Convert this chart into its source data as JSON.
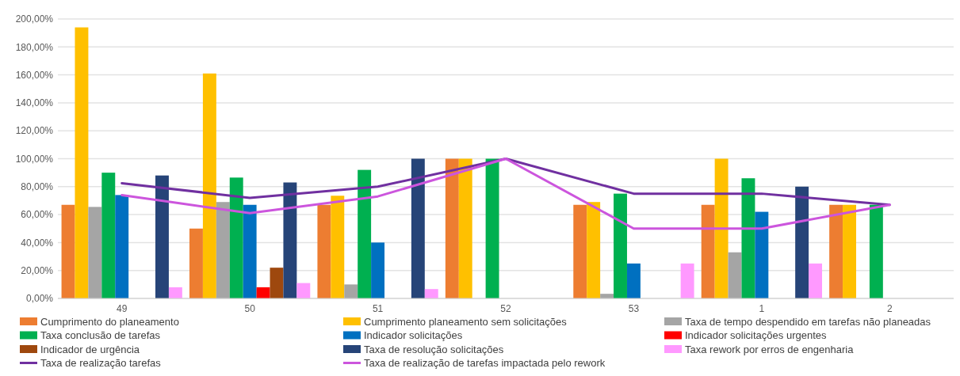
{
  "chart_data": {
    "type": "bar",
    "categories": [
      "49",
      "50",
      "51",
      "52",
      "53",
      "1",
      "2"
    ],
    "series": [
      {
        "name": "Cumprimento do planeamento",
        "color": "#ed7d31",
        "values": [
          67,
          50,
          67,
          100,
          67,
          67,
          67
        ]
      },
      {
        "name": "Cumprimento planeamento sem solicitações",
        "color": "#ffc000",
        "values": [
          194,
          161,
          73.5,
          100,
          69,
          100,
          67
        ]
      },
      {
        "name": "Taxa de tempo despendido em tarefas não planeadas",
        "color": "#a5a5a5",
        "values": [
          65.5,
          69,
          10,
          null,
          3.3,
          33,
          null
        ]
      },
      {
        "name": "Taxa conclusão de tarefas",
        "color": "#00b050",
        "values": [
          90,
          86.5,
          92,
          100,
          75,
          86,
          67
        ]
      },
      {
        "name": "Indicador solicitações",
        "color": "#0070c0",
        "values": [
          74,
          67,
          40,
          null,
          25,
          62,
          null
        ]
      },
      {
        "name": "Indicador solicitações urgentes",
        "color": "#ff0000",
        "values": [
          null,
          8,
          null,
          null,
          null,
          null,
          null
        ]
      },
      {
        "name": "Indicador de urgência",
        "color": "#9e480e",
        "values": [
          null,
          22,
          null,
          null,
          null,
          null,
          null
        ]
      },
      {
        "name": "Taxa de resolução solicitações",
        "color": "#264478",
        "values": [
          88,
          83,
          100,
          null,
          null,
          80,
          null
        ]
      },
      {
        "name": "Taxa rework por erros de engenharia",
        "color": "#ff99ff",
        "values": [
          8,
          11,
          6.7,
          null,
          25,
          25,
          null
        ]
      },
      {
        "name": "Taxa de realização tarefas",
        "type": "line",
        "color": "#7030a0",
        "values": [
          82.5,
          72,
          80,
          100,
          75,
          75,
          67
        ]
      },
      {
        "name": "Taxa de realização de tarefas impactada pelo rework",
        "type": "line",
        "color": "#cc55dd",
        "values": [
          74,
          61,
          73,
          100,
          50,
          50,
          67
        ]
      }
    ],
    "ylim": [
      0,
      200
    ],
    "yticks": [
      {
        "value": 0,
        "label": "0,00%"
      },
      {
        "value": 20,
        "label": "20,00%"
      },
      {
        "value": 40,
        "label": "40,00%"
      },
      {
        "value": 60,
        "label": "60,00%"
      },
      {
        "value": 80,
        "label": "80,00%"
      },
      {
        "value": 100,
        "label": "100,00%"
      },
      {
        "value": 120,
        "label": "120,00%"
      },
      {
        "value": 140,
        "label": "140,00%"
      },
      {
        "value": 160,
        "label": "160,00%"
      },
      {
        "value": 180,
        "label": "180,00%"
      },
      {
        "value": 200,
        "label": "200,00%"
      }
    ],
    "grid": "y",
    "legend": "bottom",
    "marker": "none",
    "line_style": "solid"
  }
}
